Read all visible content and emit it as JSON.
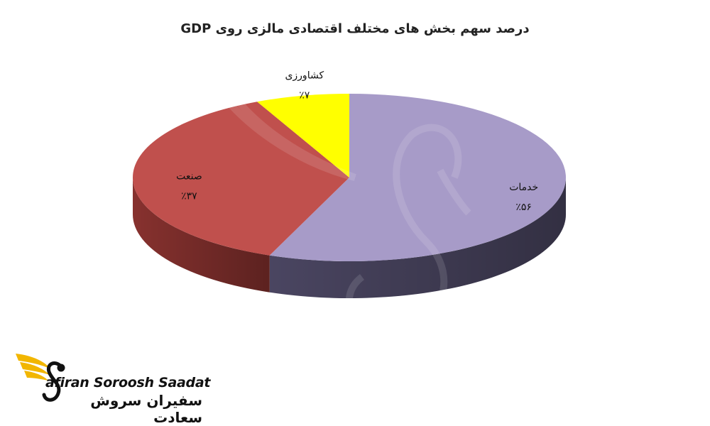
{
  "chart_data": {
    "type": "pie",
    "title": "درصد سهم بخش های مختلف اقتصادی مالزی روی GDP",
    "slices": [
      {
        "label": "خدمات",
        "value_label": "٪۵۶",
        "value": 56,
        "color": "#A79BC8",
        "side_color": "#4E4966"
      },
      {
        "label": "صنعت",
        "value_label": "٪۳۷",
        "value": 37,
        "color": "#C0504D",
        "side_color": "#8E3431"
      },
      {
        "label": "کشاورزی",
        "value_label": "٪۷",
        "value": 7,
        "color": "#FFFF00",
        "side_color": "#B3B300"
      }
    ]
  },
  "logo": {
    "text_en": "afiran Soroosh Saadat",
    "text_fa": "سفیران سروش سعادت",
    "accent_color": "#F2B600"
  }
}
